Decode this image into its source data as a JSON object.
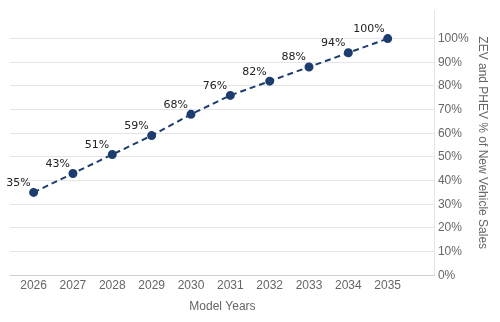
{
  "chart_data": {
    "type": "line",
    "x": [
      2026,
      2027,
      2028,
      2029,
      2030,
      2031,
      2032,
      2033,
      2034,
      2035
    ],
    "values": [
      35,
      43,
      51,
      59,
      68,
      76,
      82,
      88,
      94,
      100
    ],
    "value_labels": [
      "35%",
      "43%",
      "51%",
      "59%",
      "68%",
      "76%",
      "82%",
      "88%",
      "94%",
      "100%"
    ],
    "data_labels": true,
    "color": "#1c3d6e",
    "marker": "circle",
    "line_style": "dashed",
    "xlabel": "Model Years",
    "ylabel": "ZEV and PHEV % of New Vehicle Sales",
    "xlim": [
      2025.4,
      2036.2
    ],
    "xticks": [
      2026,
      2027,
      2028,
      2029,
      2030,
      2031,
      2032,
      2033,
      2034,
      2035
    ],
    "ylim": [
      0,
      112
    ],
    "yticks": [
      {
        "value": 0,
        "label": "0%"
      },
      {
        "value": 10,
        "label": "10%"
      },
      {
        "value": 20,
        "label": "20%"
      },
      {
        "value": 30,
        "label": "30%"
      },
      {
        "value": 40,
        "label": "40%"
      },
      {
        "value": 50,
        "label": "50%"
      },
      {
        "value": 60,
        "label": "60%"
      },
      {
        "value": 70,
        "label": "70%"
      },
      {
        "value": 80,
        "label": "80%"
      },
      {
        "value": 90,
        "label": "90%"
      },
      {
        "value": 100,
        "label": "100%"
      }
    ],
    "grid": "y"
  }
}
